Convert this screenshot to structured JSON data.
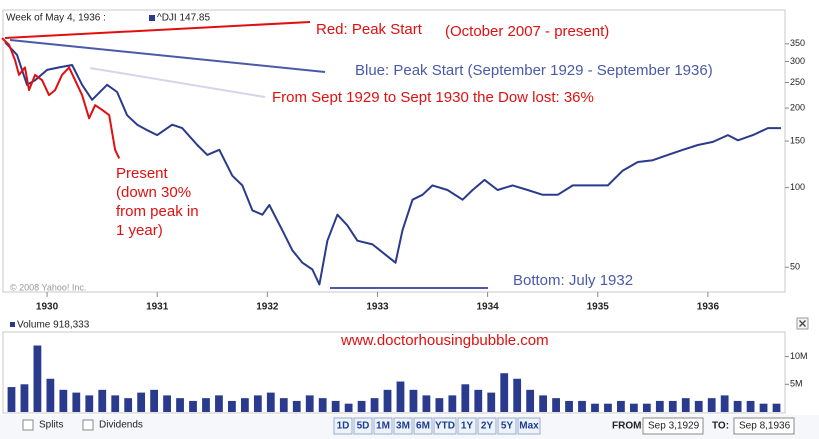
{
  "chart_data": {
    "type": "line",
    "header": "Week of May 4, 1936 :",
    "symbol_label": "^DJI 147.85",
    "copyright": "© 2008 Yahoo! Inc.",
    "log_scale": true,
    "xlim": [
      1929.6,
      1936.7
    ],
    "xticks": [
      1930,
      1931,
      1932,
      1933,
      1934,
      1935,
      1936
    ],
    "ylim": [
      41,
      470
    ],
    "yticks": [
      50,
      100,
      150,
      200,
      250,
      300,
      350
    ],
    "series": [
      {
        "name": "^DJI",
        "color": "#2a3a8c",
        "x": [
          1929.618,
          1929.727,
          1929.818,
          1929.891,
          1930,
          1930.109,
          1930.227,
          1930.318,
          1930.409,
          1930.545,
          1930.636,
          1930.727,
          1930.818,
          1930.909,
          1931,
          1931.136,
          1931.227,
          1931.364,
          1931.455,
          1931.564,
          1931.682,
          1931.773,
          1931.864,
          1931.955,
          1932.018,
          1932.136,
          1932.227,
          1932.318,
          1932.409,
          1932.473,
          1932.545,
          1932.636,
          1932.727,
          1932.818,
          1932.955,
          1933.091,
          1933.164,
          1933.227,
          1933.318,
          1933.409,
          1933.5,
          1933.636,
          1933.773,
          1933.864,
          1933.973,
          1934.091,
          1934.227,
          1934.364,
          1934.5,
          1934.636,
          1934.773,
          1934.909,
          1935.091,
          1935.227,
          1935.364,
          1935.5,
          1935.636,
          1935.773,
          1935.909,
          1936.045,
          1936.182,
          1936.273,
          1936.409,
          1936.545,
          1936.664
        ],
        "values": [
          355,
          318,
          245,
          255,
          279,
          285,
          291,
          245,
          215,
          245,
          230,
          188,
          173,
          165,
          158,
          173,
          168,
          145,
          133,
          139,
          111,
          102,
          82,
          79,
          86,
          69,
          58,
          52,
          49,
          43,
          63,
          79,
          72,
          63,
          61,
          55,
          52,
          69,
          90,
          94,
          102,
          98,
          90,
          98,
          107,
          98,
          102,
          98,
          94,
          94,
          102,
          102,
          102,
          116,
          125,
          127,
          133,
          139,
          145,
          149,
          158,
          151,
          158,
          168,
          168
        ]
      },
      {
        "name": "Red",
        "color": "#e01010",
        "x": [
          1929.591,
          1929.655,
          1929.709,
          1929.745,
          1929.8,
          1929.836,
          1929.891,
          1929.955,
          1930.018,
          1930.073,
          1930.136,
          1930.2,
          1930.255,
          1930.318,
          1930.382,
          1930.436,
          1930.5,
          1930.564,
          1930.618,
          1930.655
        ],
        "values": [
          368,
          347,
          304,
          267,
          285,
          234,
          267,
          255,
          224,
          234,
          267,
          285,
          255,
          224,
          183,
          205,
          197,
          188,
          139,
          129
        ]
      }
    ],
    "annotations": {
      "red": "Red:  Peak Start",
      "red_range": "(October 2007 - present)",
      "blue": "Blue:  Peak Start (September 1929 - September 1936)",
      "loss": "From Sept 1929 to Sept 1930 the Dow lost:  36%",
      "present": [
        "Present",
        "(down 30%",
        "from peak in",
        "1 year)"
      ],
      "bottom": "Bottom:  July 1932",
      "site": "www.doctorhousingbubble.com"
    },
    "volume": {
      "label": "Volume 918,333",
      "color": "#2a3a8c",
      "ylim": [
        0,
        14260000
      ],
      "yticks": [
        {
          "value": 5000000,
          "label": "5M"
        },
        {
          "value": 10000000,
          "label": "10M"
        }
      ],
      "values": [
        4500000,
        5000000,
        12000000,
        6000000,
        4000000,
        3500000,
        3000000,
        4000000,
        3000000,
        2500000,
        3500000,
        4000000,
        3000000,
        2500000,
        2000000,
        2500000,
        3000000,
        2000000,
        2500000,
        3000000,
        3500000,
        2500000,
        2000000,
        3000000,
        2500000,
        2000000,
        1500000,
        2000000,
        2500000,
        4000000,
        5500000,
        4000000,
        3000000,
        2500000,
        3000000,
        5000000,
        4000000,
        3500000,
        7000000,
        6000000,
        4000000,
        3000000,
        2500000,
        2000000,
        2000000,
        1500000,
        1500000,
        2000000,
        1500000,
        1500000,
        2000000,
        2000000,
        2500000,
        2000000,
        2500000,
        3000000,
        2000000,
        2000000,
        1500000,
        1500000
      ]
    },
    "controls": {
      "splits": "Splits",
      "dividends": "Dividends",
      "buttons": [
        "1D",
        "5D",
        "1M",
        "3M",
        "6M",
        "YTD",
        "1Y",
        "2Y",
        "5Y",
        "Max"
      ],
      "from_label": "FROM:",
      "from": "Sep 3,1929",
      "to_label": "TO:",
      "to": "Sep 8,1936"
    }
  }
}
